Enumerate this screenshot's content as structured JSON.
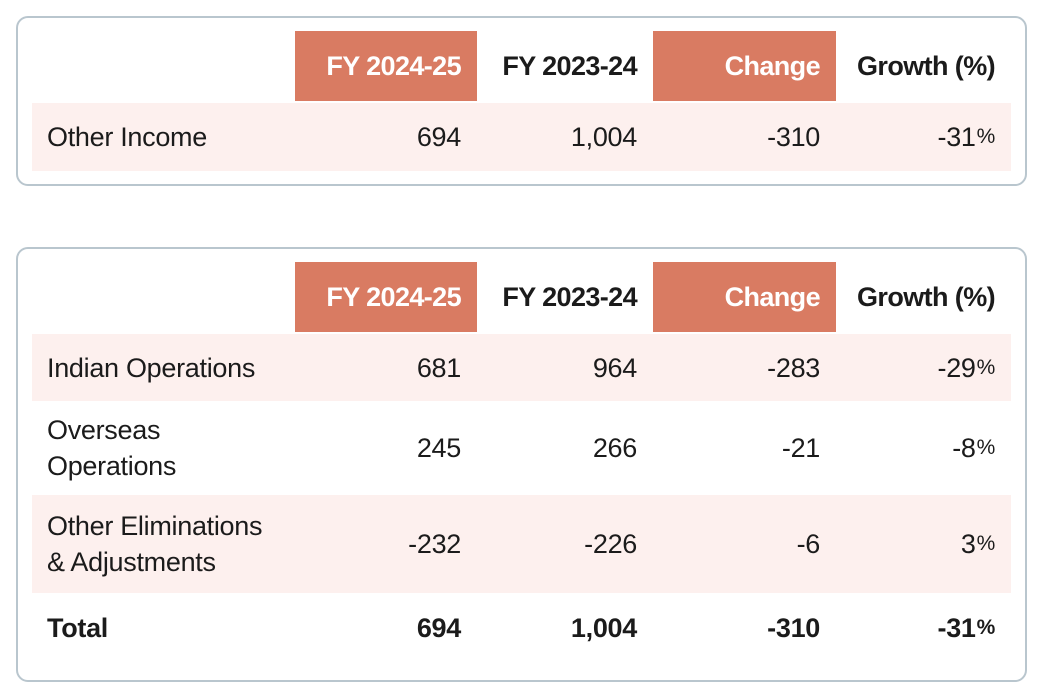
{
  "palette": {
    "accent": "#d97b62",
    "row_pink": "#fdf0ee",
    "card_border": "#b9c6ce",
    "text": "#1b1b1b",
    "header_text_on_accent": "#ffffff"
  },
  "income_table": {
    "columns": [
      {
        "label": ""
      },
      {
        "label": "FY 2024-25",
        "accent": true
      },
      {
        "label": "FY 2023-24",
        "accent": false
      },
      {
        "label": "Change",
        "accent": true
      },
      {
        "label": "Growth (%)",
        "accent": false
      }
    ],
    "rows": [
      {
        "label": "Other Income",
        "fy_2024_25": "694",
        "fy_2023_24": "1,004",
        "change": "-310",
        "growth_value": "-31",
        "growth_unit": "%"
      }
    ]
  },
  "segment_table": {
    "columns": [
      {
        "label": ""
      },
      {
        "label": "FY 2024-25",
        "accent": true
      },
      {
        "label": "FY 2023-24",
        "accent": false
      },
      {
        "label": "Change",
        "accent": true
      },
      {
        "label": "Growth (%)",
        "accent": false
      }
    ],
    "rows": [
      {
        "label": "Indian Operations",
        "fy_2024_25": "681",
        "fy_2023_24": "964",
        "change": "-283",
        "growth_value": "-29",
        "growth_unit": "%"
      },
      {
        "label": "Overseas Operations",
        "fy_2024_25": "245",
        "fy_2023_24": "266",
        "change": "-21",
        "growth_value": "-8",
        "growth_unit": "%"
      },
      {
        "label": "Other Eliminations & Adjustments",
        "fy_2024_25": "-232",
        "fy_2023_24": "-226",
        "change": "-6",
        "growth_value": "3",
        "growth_unit": "%"
      },
      {
        "label": "Total",
        "fy_2024_25": "694",
        "fy_2023_24": "1,004",
        "change": "-310",
        "growth_value": "-31",
        "growth_unit": "%",
        "bold": true
      }
    ]
  }
}
